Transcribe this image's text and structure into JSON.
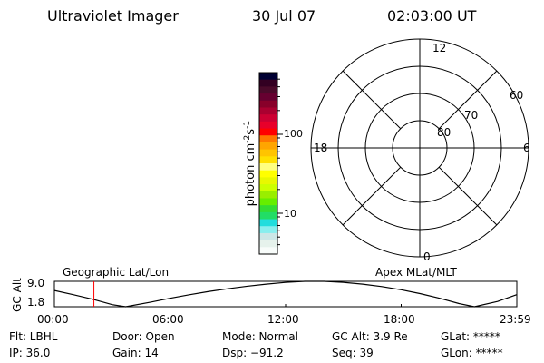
{
  "header": {
    "instrument": "Ultraviolet Imager",
    "date": "30 Jul 07",
    "time": "02:03:00 UT"
  },
  "colorbar": {
    "label": "photon cm",
    "label_sup1": "-2",
    "label_mid": "s",
    "label_sup2": "-1",
    "ticks": [
      "100",
      "10"
    ],
    "colors": [
      "#000033",
      "#330022",
      "#4a0a2a",
      "#660030",
      "#88002a",
      "#aa0030",
      "#cc0033",
      "#e8002a",
      "#ff0000",
      "#ff7700",
      "#ffa500",
      "#ffc400",
      "#ffe000",
      "#ffff80",
      "#ffff00",
      "#e8f800",
      "#ccff00",
      "#99ee00",
      "#66ee00",
      "#33dd33",
      "#22dd66",
      "#22dddd",
      "#88eeee",
      "#cce6e6",
      "#e6f2ec",
      "#f8fcfa"
    ]
  },
  "polar": {
    "mlt_labels": {
      "top": "12",
      "bottom": "0",
      "left": "18",
      "right": "6"
    },
    "lat_labels": [
      "60",
      "70",
      "80"
    ]
  },
  "timeline": {
    "left_title": "Geographic Lat/Lon",
    "right_title": "Apex MLat/MLT",
    "ylabel": "GC Alt",
    "yticks": [
      "9.0",
      "1.8"
    ],
    "xticks": [
      "00:00",
      "06:00",
      "12:00",
      "18:00",
      "23:59"
    ],
    "marker_color": "#ff0000"
  },
  "chart_data": {
    "type": "line",
    "ylabel": "GC Alt",
    "ylim": [
      1.8,
      9.0
    ],
    "xlim": [
      "00:00",
      "23:59"
    ],
    "x_hours": [
      0,
      1,
      2,
      3,
      3.7,
      5,
      6,
      7,
      8,
      9,
      10,
      11,
      12,
      13,
      14,
      15,
      16,
      17,
      18,
      19,
      20,
      21,
      21.8,
      23,
      23.98
    ],
    "y": [
      6.4,
      5.2,
      3.9,
      2.4,
      1.8,
      3.1,
      4.2,
      5.2,
      6.1,
      6.9,
      7.6,
      8.2,
      8.7,
      9.0,
      9.0,
      8.7,
      8.2,
      7.5,
      6.6,
      5.5,
      4.2,
      2.7,
      1.8,
      3.3,
      5.2
    ],
    "marker_time": "02:03:00"
  },
  "info": {
    "row1": [
      "Flt: LBHL",
      "Door: Open",
      "Mode: Normal",
      "GC Alt: 3.9 Re",
      "GLat: *****"
    ],
    "row2": [
      "IP: 36.0",
      "Gain: 14",
      "Dsp:  −91.2",
      "Seq: 39",
      "GLon: *****"
    ]
  }
}
